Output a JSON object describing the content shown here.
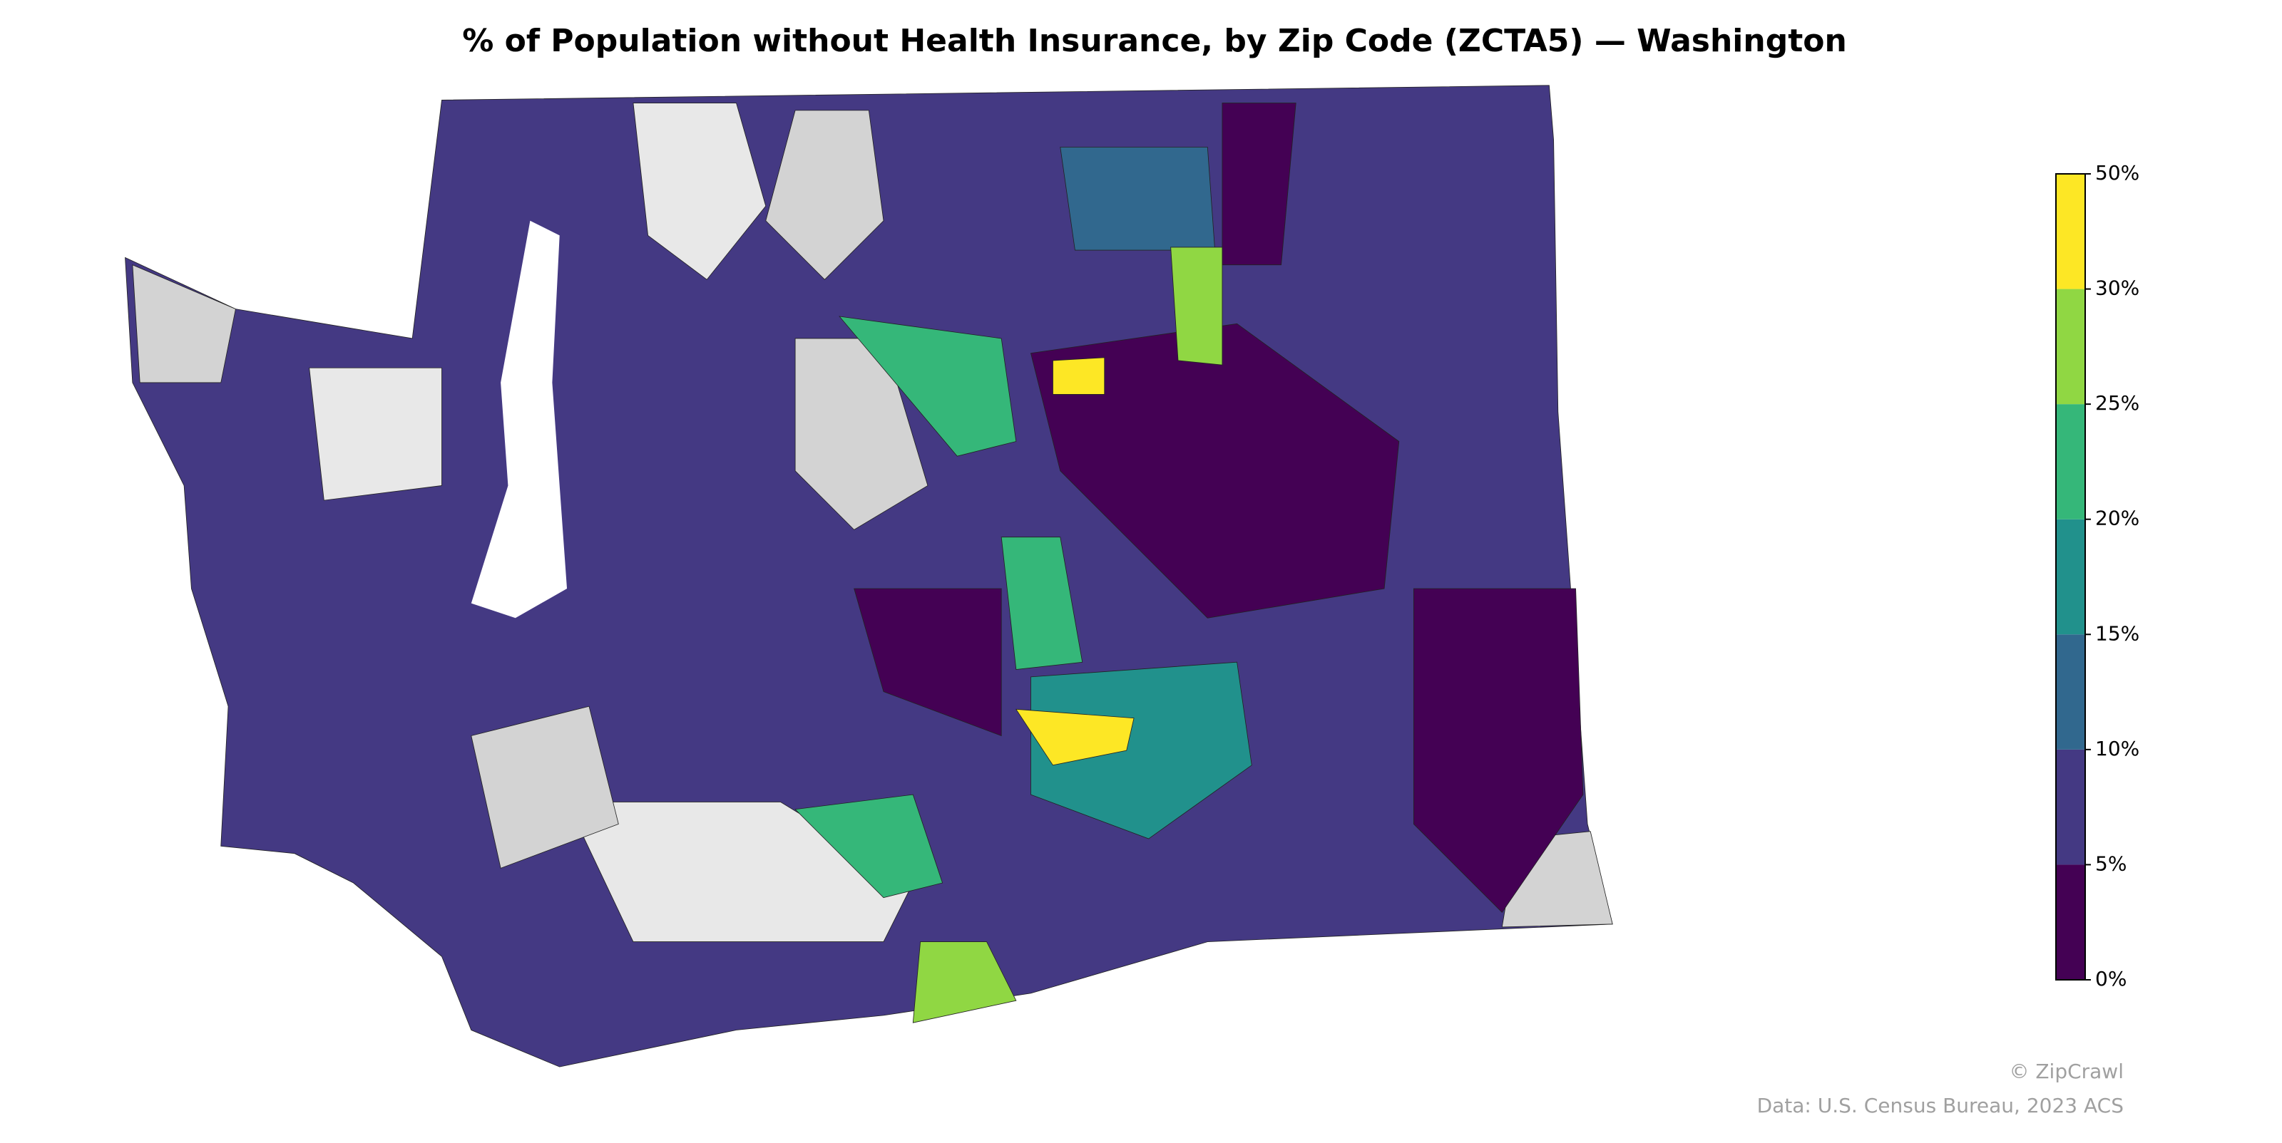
{
  "title": "% of Population without Health Insurance, by Zip Code (ZCTA5) — Washington",
  "colorbar": {
    "bounds": [
      {
        "value": 0,
        "label": "0%"
      },
      {
        "value": 5,
        "label": "5%"
      },
      {
        "value": 10,
        "label": "10%"
      },
      {
        "value": 15,
        "label": "15%"
      },
      {
        "value": 20,
        "label": "20%"
      },
      {
        "value": 25,
        "label": "25%"
      },
      {
        "value": 30,
        "label": "30%"
      },
      {
        "value": 50,
        "label": "50%"
      }
    ],
    "colors": [
      "#440154",
      "#443983",
      "#31688e",
      "#21918c",
      "#35b779",
      "#90d743",
      "#fde725"
    ]
  },
  "credits": [
    "© ZipCrawl",
    "Data: U.S. Census Bureau, 2023 ACS"
  ]
}
